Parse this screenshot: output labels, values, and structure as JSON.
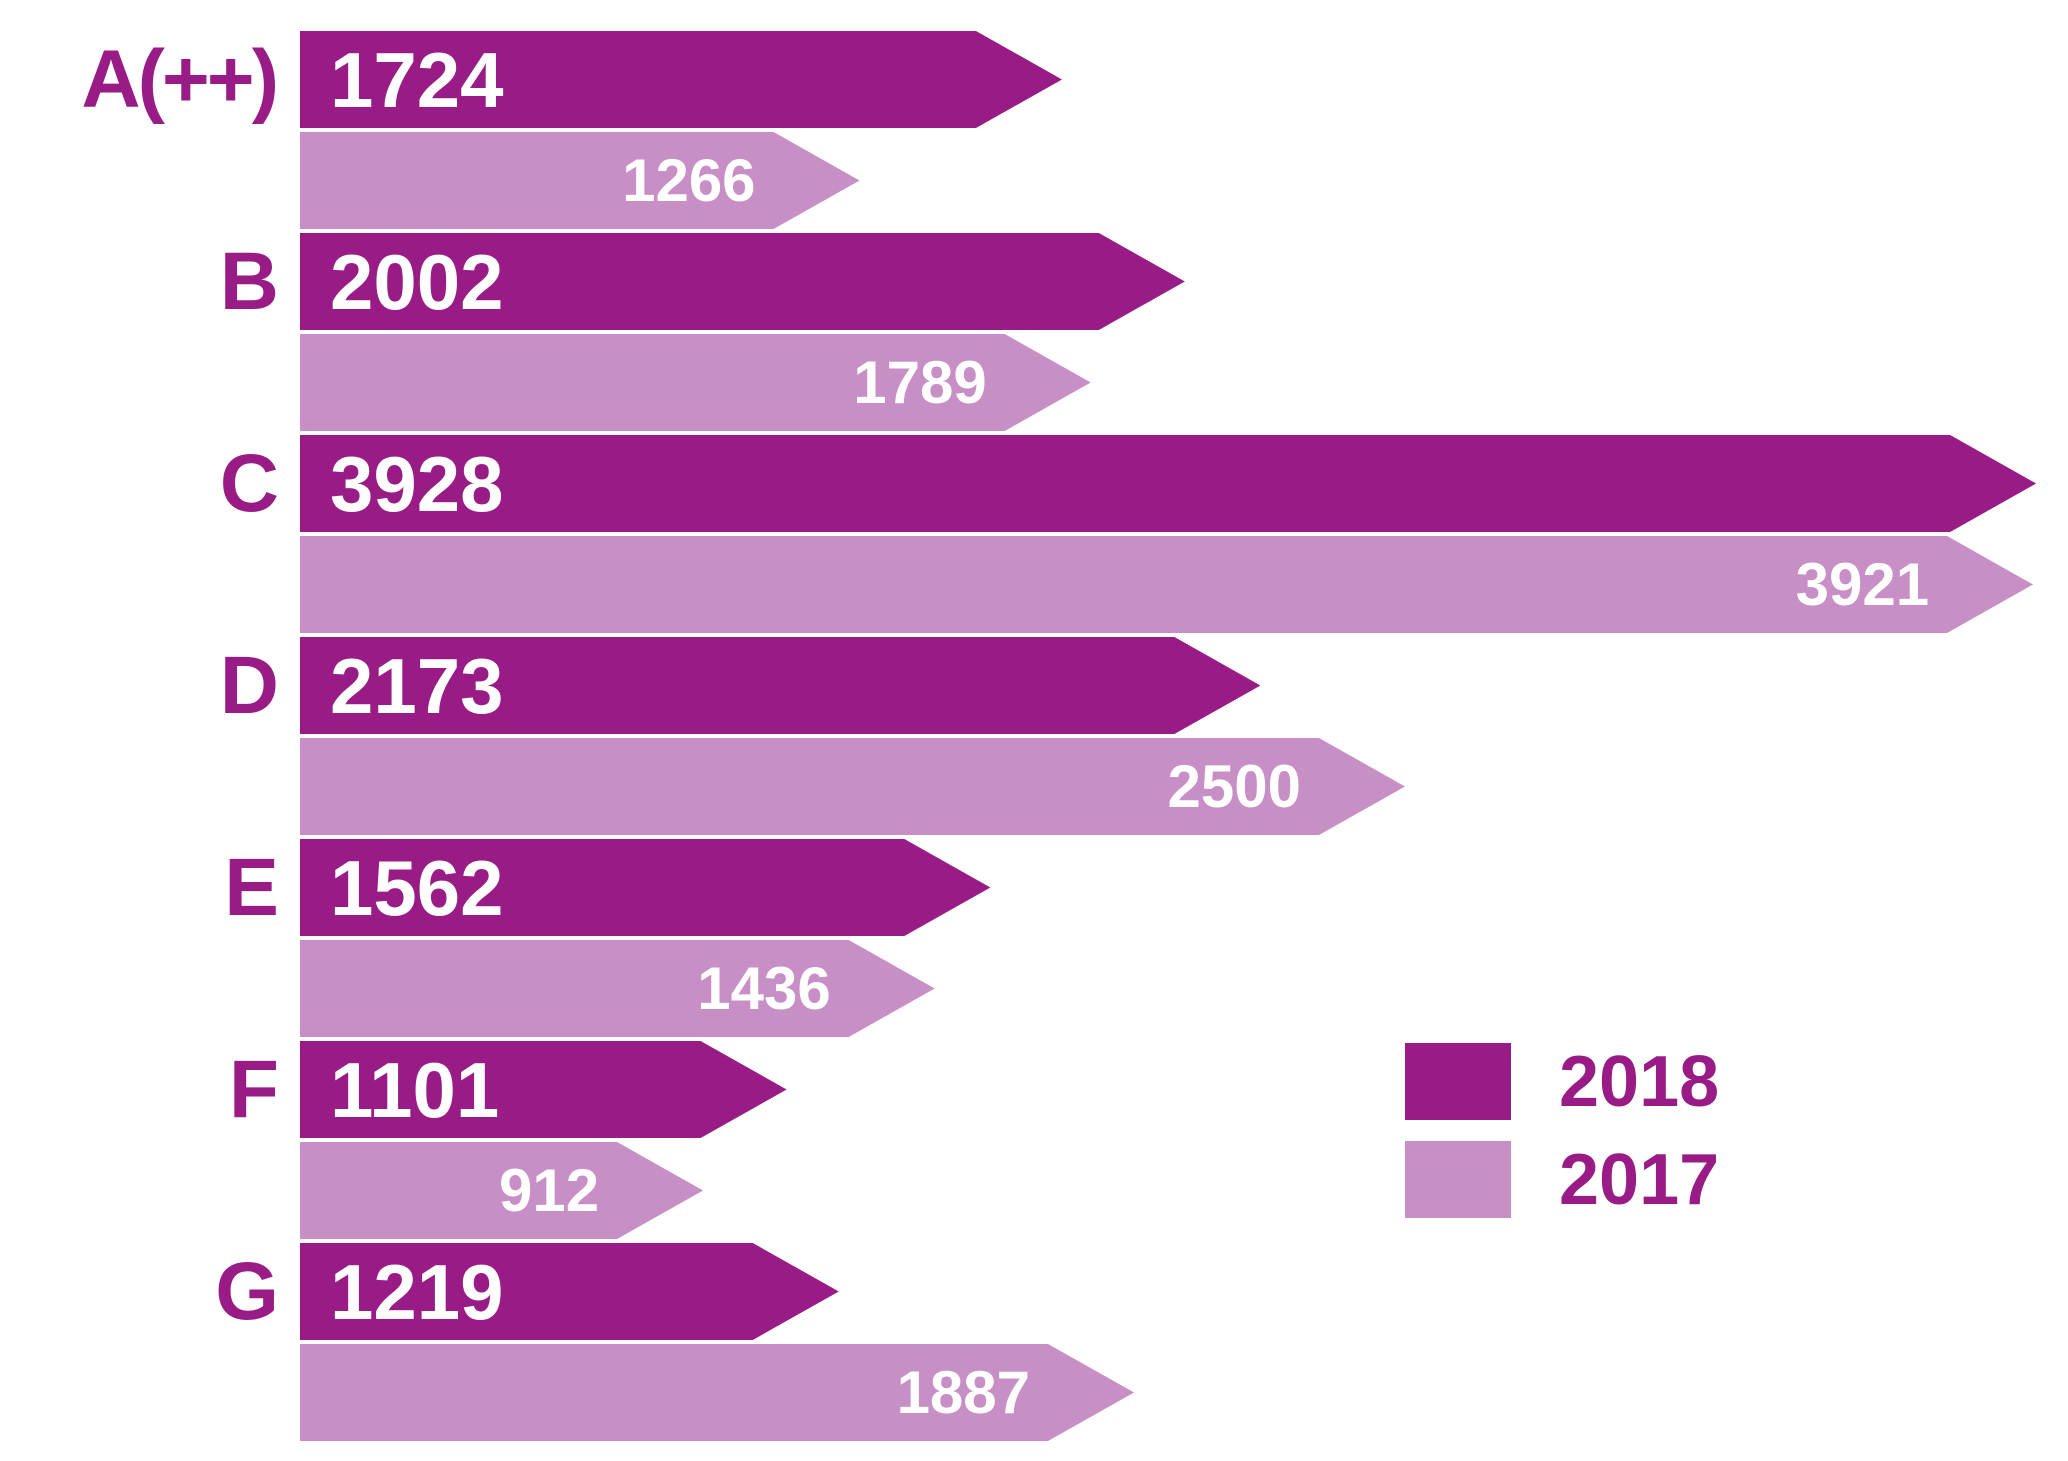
{
  "chart_data": {
    "type": "bar",
    "orientation": "horizontal",
    "bar_shape": "right-arrow",
    "title": "",
    "xlabel": "",
    "ylabel": "",
    "xlim": [
      0,
      4000
    ],
    "grid": false,
    "axes_visible": false,
    "legend_position": "middle-right",
    "categories": [
      "A(++)",
      "B",
      "C",
      "D",
      "E",
      "F",
      "G"
    ],
    "series": [
      {
        "name": "2018",
        "color": "#991c86",
        "values": [
          1724,
          2002,
          3928,
          2173,
          1562,
          1101,
          1219
        ],
        "value_label_position": "inside-left"
      },
      {
        "name": "2017",
        "color": "#c78fc5",
        "values": [
          1266,
          1789,
          3921,
          2500,
          1436,
          912,
          1887
        ],
        "value_label_position": "inside-right"
      }
    ]
  },
  "legend": {
    "items": [
      {
        "label": "2018",
        "color": "#991c86"
      },
      {
        "label": "2017",
        "color": "#c78fc5"
      }
    ]
  },
  "colors": {
    "series_2018": "#991c86",
    "series_2017": "#c78fc5",
    "category_text": "#991c86",
    "legend_text": "#991c86",
    "value_text": "#ffffff",
    "background": "#ffffff"
  }
}
